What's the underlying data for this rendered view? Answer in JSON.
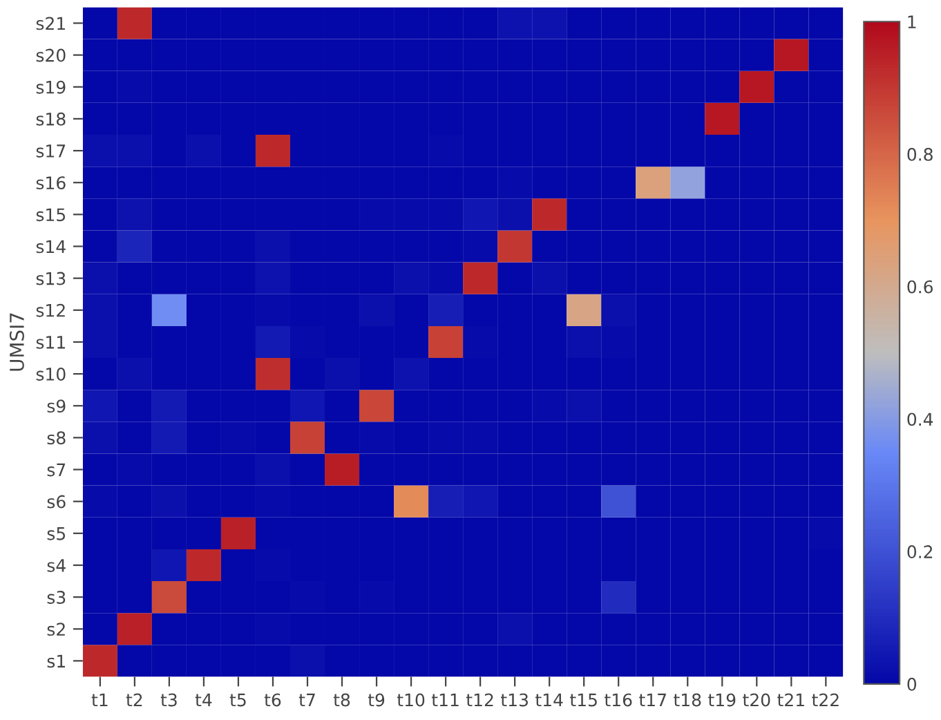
{
  "chart_data": {
    "type": "heatmap",
    "ylabel": "UMSI7",
    "categories": [
      "t1",
      "t2",
      "t3",
      "t4",
      "t5",
      "t6",
      "t7",
      "t8",
      "t9",
      "t10",
      "t11",
      "t12",
      "t13",
      "t14",
      "t15",
      "t16",
      "t17",
      "t18",
      "t19",
      "t20",
      "t21",
      "t22"
    ],
    "y_categories": [
      "s21",
      "s20",
      "s19",
      "s18",
      "s17",
      "s16",
      "s15",
      "s14",
      "s13",
      "s12",
      "s11",
      "s10",
      "s9",
      "s8",
      "s7",
      "s6",
      "s5",
      "s4",
      "s3",
      "s2",
      "s1"
    ],
    "cells": [
      [
        0,
        0.93,
        0,
        0,
        0,
        0,
        0,
        0,
        0,
        0,
        0,
        0,
        0.03,
        0.03,
        0,
        0,
        0,
        0,
        0,
        0,
        0,
        0
      ],
      [
        0,
        0,
        0,
        0,
        0,
        0,
        0,
        0,
        0,
        0,
        0,
        0,
        0,
        0,
        0,
        0,
        0,
        0,
        0,
        0,
        0.97,
        0
      ],
      [
        0,
        0.01,
        0,
        0,
        0,
        0,
        0,
        0,
        0,
        0,
        0,
        0,
        0,
        0,
        0,
        0,
        0,
        0,
        0,
        0.97,
        0,
        0
      ],
      [
        0,
        0,
        0,
        0,
        0,
        0,
        0,
        0,
        0,
        0,
        0,
        0,
        0,
        0,
        0,
        0,
        0,
        0,
        0.97,
        0,
        0,
        0
      ],
      [
        0.02,
        0.02,
        0,
        0.02,
        0,
        0.93,
        0,
        0,
        0,
        0,
        0.01,
        0,
        0,
        0,
        0,
        0,
        0,
        0,
        0,
        0,
        0,
        0
      ],
      [
        0,
        0,
        0,
        0,
        0,
        0,
        0,
        0,
        0,
        0,
        0,
        0,
        0.01,
        0,
        0,
        0,
        0.64,
        0.42,
        0,
        0,
        0,
        0
      ],
      [
        0,
        0.03,
        0,
        0,
        0,
        0,
        0,
        0,
        0.01,
        0.01,
        0.01,
        0.04,
        0.02,
        0.93,
        0,
        0,
        0,
        0,
        0,
        0,
        0,
        0
      ],
      [
        0,
        0.08,
        0,
        0,
        0,
        0.02,
        0,
        0,
        0,
        0,
        0,
        0.01,
        0.9,
        0,
        0,
        0,
        0,
        0,
        0,
        0,
        0,
        0
      ],
      [
        0.02,
        0,
        0,
        0,
        0,
        0.03,
        0,
        0,
        0,
        0.02,
        0.01,
        0.93,
        0,
        0.02,
        0,
        0,
        0,
        0,
        0,
        0,
        0,
        0
      ],
      [
        0.02,
        0,
        0.36,
        0,
        0,
        0.01,
        0,
        0,
        0.02,
        0,
        0.06,
        0,
        0,
        0,
        0.62,
        0.02,
        0,
        0,
        0,
        0,
        0,
        0
      ],
      [
        0.02,
        0,
        0,
        0,
        0,
        0.05,
        0.01,
        0,
        0,
        0,
        0.88,
        0.01,
        0,
        0,
        0.02,
        0.01,
        0,
        0,
        0,
        0,
        0,
        0
      ],
      [
        0,
        0.02,
        0,
        0,
        0,
        0.92,
        0,
        0.02,
        0,
        0.03,
        0,
        0,
        0,
        0,
        0,
        0,
        0,
        0,
        0,
        0,
        0,
        0
      ],
      [
        0.04,
        0,
        0.05,
        0,
        0,
        0,
        0.04,
        0,
        0.87,
        0,
        0,
        0,
        0,
        0.01,
        0.02,
        0,
        0,
        0,
        0,
        0,
        0,
        0
      ],
      [
        0.02,
        0,
        0.05,
        0,
        0.01,
        0,
        0.88,
        0,
        0.01,
        0,
        0.01,
        0.01,
        0,
        0,
        0,
        0,
        0,
        0,
        0,
        0,
        0,
        0
      ],
      [
        0,
        0.01,
        0,
        0,
        0,
        0.02,
        0,
        0.96,
        0,
        0,
        0,
        0,
        0,
        0,
        0,
        0,
        0,
        0,
        0,
        0,
        0,
        0
      ],
      [
        0.01,
        0,
        0.02,
        0,
        0,
        0.01,
        0,
        0,
        0,
        0.72,
        0.06,
        0.04,
        0,
        0,
        0,
        0.2,
        0,
        0,
        0,
        0,
        0,
        0
      ],
      [
        0,
        0,
        0,
        0,
        0.95,
        0,
        0,
        0,
        0,
        0,
        0,
        0,
        0,
        0,
        0,
        0,
        0,
        0,
        0,
        0,
        0,
        0.01
      ],
      [
        0,
        0,
        0.04,
        0.93,
        0,
        0.01,
        0,
        0,
        0,
        0,
        0,
        0,
        0,
        0,
        0,
        0,
        0,
        0,
        0,
        0,
        0,
        0
      ],
      [
        0,
        0,
        0.86,
        0,
        0,
        0,
        0.01,
        0,
        0.01,
        0,
        0,
        0,
        0,
        0,
        0,
        0.1,
        0,
        0,
        0,
        0,
        0,
        0
      ],
      [
        0,
        0.95,
        0,
        0,
        0,
        0.01,
        0,
        0,
        0,
        0,
        0,
        0,
        0.02,
        0,
        0,
        0,
        0,
        0,
        0,
        0,
        0,
        0
      ],
      [
        0.93,
        0,
        0,
        0,
        0,
        0,
        0.02,
        0,
        0,
        0,
        0,
        0,
        0,
        0,
        0,
        0,
        0,
        0,
        0,
        0,
        0,
        0
      ]
    ],
    "clim": [
      0,
      1
    ],
    "cticks": [
      0,
      0.2,
      0.4,
      0.6,
      0.8,
      1
    ]
  }
}
